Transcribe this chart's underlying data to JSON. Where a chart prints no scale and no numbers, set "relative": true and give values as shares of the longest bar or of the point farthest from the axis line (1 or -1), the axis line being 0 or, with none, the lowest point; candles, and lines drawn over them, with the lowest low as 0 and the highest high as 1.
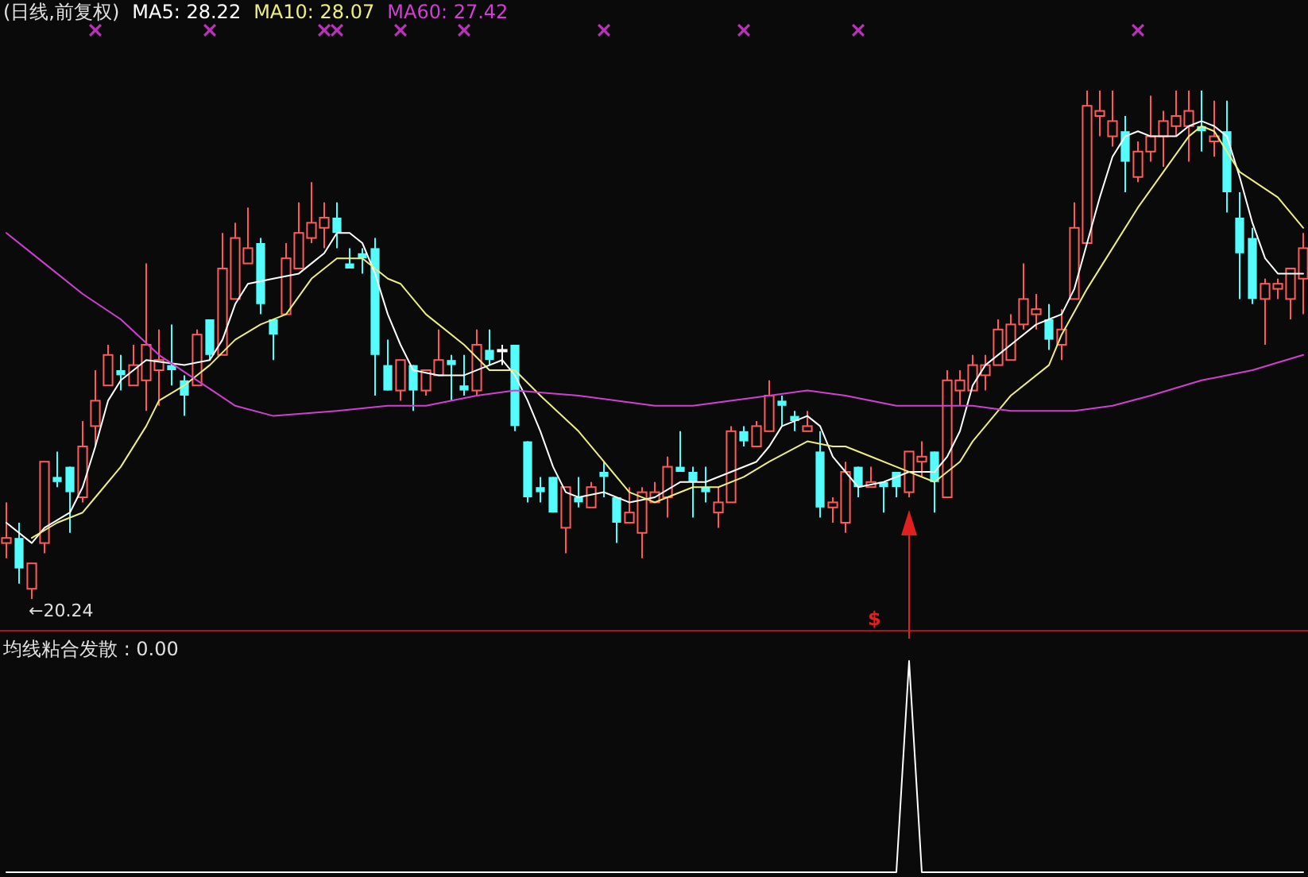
{
  "chart_data": [
    {
      "type": "candlestick",
      "title": "(日线,前复权)",
      "relative": true,
      "legend": "top left",
      "categories": [
        null,
        null,
        null,
        null,
        null,
        null,
        null,
        null,
        null,
        null,
        null,
        null,
        null,
        null,
        null,
        null,
        null,
        null,
        null,
        null,
        null,
        null,
        null,
        null,
        null,
        null,
        null,
        null,
        null,
        null,
        null,
        null,
        null,
        null,
        null,
        null,
        null,
        null,
        null,
        null,
        null,
        null,
        null,
        null,
        null,
        null,
        null,
        null,
        null,
        null,
        null,
        null,
        null,
        null,
        null,
        null,
        null,
        null,
        null,
        null,
        null,
        null,
        null,
        null,
        null,
        null,
        null,
        null,
        null,
        null,
        null,
        null,
        null,
        null,
        null,
        null,
        null,
        null,
        null,
        null,
        null,
        null,
        null,
        null,
        null,
        null,
        null,
        null,
        null,
        null,
        null,
        null,
        null,
        null,
        null,
        null,
        null,
        null,
        null,
        null,
        null,
        null,
        null
      ],
      "ohlc": [
        [
          0.11,
          0.19,
          0.08,
          0.12
        ],
        [
          0.12,
          0.15,
          0.03,
          0.06
        ],
        [
          0.02,
          0.07,
          0,
          0.07
        ],
        [
          0.11,
          0.27,
          0.09,
          0.27
        ],
        [
          0.24,
          0.29,
          0.22,
          0.23
        ],
        [
          0.26,
          0.26,
          0.13,
          0.21
        ],
        [
          0.2,
          0.35,
          0.19,
          0.3
        ],
        [
          0.34,
          0.45,
          0.3,
          0.39
        ],
        [
          0.42,
          0.5,
          0.42,
          0.48
        ],
        [
          0.45,
          0.48,
          0.41,
          0.44
        ],
        [
          0.42,
          0.5,
          0.42,
          0.46
        ],
        [
          0.43,
          0.66,
          0.37,
          0.5
        ],
        [
          0.45,
          0.53,
          0.38,
          0.47
        ],
        [
          0.46,
          0.54,
          0.42,
          0.45
        ],
        [
          0.43,
          0.44,
          0.36,
          0.4
        ],
        [
          0.42,
          0.53,
          0.42,
          0.52
        ],
        [
          0.55,
          0.55,
          0.47,
          0.48
        ],
        [
          0.48,
          0.72,
          0.48,
          0.65
        ],
        [
          0.59,
          0.74,
          0.59,
          0.71
        ],
        [
          0.66,
          0.77,
          0.66,
          0.69
        ],
        [
          0.7,
          0.71,
          0.56,
          0.58
        ],
        [
          0.55,
          0.55,
          0.47,
          0.52
        ],
        [
          0.56,
          0.7,
          0.56,
          0.67
        ],
        [
          0.65,
          0.78,
          0.65,
          0.72
        ],
        [
          0.71,
          0.82,
          0.7,
          0.74
        ],
        [
          0.73,
          0.78,
          0.69,
          0.75
        ],
        [
          0.75,
          0.78,
          0.69,
          0.72
        ],
        [
          0.66,
          0.69,
          0.65,
          0.65
        ],
        [
          0.68,
          0.69,
          0.64,
          0.67
        ],
        [
          0.69,
          0.71,
          0.4,
          0.48
        ],
        [
          0.46,
          0.51,
          0.41,
          0.41
        ],
        [
          0.41,
          0.47,
          0.39,
          0.47
        ],
        [
          0.46,
          0.46,
          0.37,
          0.41
        ],
        [
          0.41,
          0.45,
          0.4,
          0.45
        ],
        [
          0.44,
          0.53,
          0.44,
          0.47
        ],
        [
          0.47,
          0.48,
          0.39,
          0.46
        ],
        [
          0.42,
          0.48,
          0.4,
          0.41
        ],
        [
          0.41,
          0.53,
          0.4,
          0.5
        ],
        [
          0.49,
          0.53,
          0.46,
          0.47
        ],
        [
          0.49,
          0.5,
          0.46,
          0.49
        ],
        [
          0.5,
          0.5,
          0.33,
          0.34
        ],
        [
          0.31,
          0.31,
          0.19,
          0.2
        ],
        [
          0.22,
          0.24,
          0.19,
          0.21
        ],
        [
          0.24,
          0.24,
          0.17,
          0.17
        ],
        [
          0.14,
          0.22,
          0.09,
          0.22
        ],
        [
          0.2,
          0.24,
          0.18,
          0.19
        ],
        [
          0.18,
          0.23,
          0.18,
          0.22
        ],
        [
          0.25,
          0.27,
          0.2,
          0.24
        ],
        [
          0.2,
          0.2,
          0.11,
          0.15
        ],
        [
          0.15,
          0.22,
          0.15,
          0.17
        ],
        [
          0.13,
          0.22,
          0.08,
          0.21
        ],
        [
          0.19,
          0.23,
          0.19,
          0.21
        ],
        [
          0.2,
          0.28,
          0.16,
          0.26
        ],
        [
          0.26,
          0.33,
          0.25,
          0.25
        ],
        [
          0.25,
          0.26,
          0.16,
          0.23
        ],
        [
          0.22,
          0.26,
          0.19,
          0.21
        ],
        [
          0.17,
          0.22,
          0.14,
          0.19
        ],
        [
          0.19,
          0.34,
          0.19,
          0.33
        ],
        [
          0.33,
          0.34,
          0.3,
          0.31
        ],
        [
          0.3,
          0.35,
          0.3,
          0.34
        ],
        [
          0.33,
          0.43,
          0.33,
          0.4
        ],
        [
          0.39,
          0.4,
          0.34,
          0.38
        ],
        [
          0.36,
          0.37,
          0.33,
          0.35
        ],
        [
          0.33,
          0.37,
          0.33,
          0.34
        ],
        [
          0.29,
          0.33,
          0.16,
          0.18
        ],
        [
          0.18,
          0.2,
          0.15,
          0.19
        ],
        [
          0.15,
          0.27,
          0.13,
          0.25
        ],
        [
          0.26,
          0.26,
          0.2,
          0.22
        ],
        [
          0.22,
          0.26,
          0.22,
          0.23
        ],
        [
          0.23,
          0.23,
          0.17,
          0.22
        ],
        [
          0.25,
          0.25,
          0.2,
          0.22
        ],
        [
          0.21,
          0.29,
          0.2,
          0.29
        ],
        [
          0.27,
          0.31,
          0.24,
          0.28
        ],
        [
          0.29,
          0.29,
          0.17,
          0.23
        ],
        [
          0.2,
          0.45,
          0.2,
          0.43
        ],
        [
          0.41,
          0.45,
          0.38,
          0.43
        ],
        [
          0.41,
          0.48,
          0.41,
          0.46
        ],
        [
          0.44,
          0.48,
          0.41,
          0.46
        ],
        [
          0.46,
          0.55,
          0.46,
          0.53
        ],
        [
          0.47,
          0.56,
          0.47,
          0.54
        ],
        [
          0.54,
          0.66,
          0.53,
          0.59
        ],
        [
          0.56,
          0.6,
          0.53,
          0.57
        ],
        [
          0.55,
          0.58,
          0.49,
          0.51
        ],
        [
          0.5,
          0.57,
          0.47,
          0.53
        ],
        [
          0.59,
          0.78,
          0.59,
          0.73
        ],
        [
          0.7,
          1,
          0.7,
          0.97
        ],
        [
          0.95,
          1,
          0.91,
          0.96
        ],
        [
          0.91,
          1,
          0.89,
          0.94
        ],
        [
          0.92,
          0.95,
          0.8,
          0.86
        ],
        [
          0.83,
          0.9,
          0.82,
          0.88
        ],
        [
          0.88,
          0.99,
          0.86,
          0.91
        ],
        [
          0.91,
          0.96,
          0.85,
          0.94
        ],
        [
          0.93,
          1,
          0.91,
          0.95
        ],
        [
          0.93,
          1,
          0.86,
          0.96
        ],
        [
          0.93,
          1,
          0.88,
          0.92
        ],
        [
          0.9,
          0.98,
          0.87,
          0.91
        ],
        [
          0.92,
          0.98,
          0.76,
          0.8
        ],
        [
          0.75,
          0.8,
          0.59,
          0.68
        ],
        [
          0.71,
          0.73,
          0.58,
          0.59
        ],
        [
          0.59,
          0.63,
          0.5,
          0.62
        ],
        [
          0.61,
          0.63,
          0.59,
          0.62
        ],
        [
          0.59,
          0.65,
          0.55,
          0.65
        ],
        [
          0.63,
          0.72,
          0.56,
          0.69
        ]
      ],
      "series": [
        {
          "type": "line",
          "name": "MA5: 28.22",
          "color": "#ffffff",
          "values": [
            0.15,
            null,
            0.11,
            0.14,
            null,
            0.17,
            0.22,
            0.3,
            0.39,
            0.43,
            null,
            0.47,
            null,
            null,
            0.46,
            null,
            0.47,
            0.51,
            0.58,
            0.62,
            null,
            0.63,
            null,
            0.64,
            0.66,
            0.68,
            0.72,
            0.72,
            0.7,
            0.64,
            0.56,
            0.5,
            0.45,
            null,
            0.44,
            null,
            0.44,
            null,
            0.46,
            0.47,
            0.44,
            0.39,
            0.33,
            0.26,
            0.21,
            0.2,
            null,
            0.21,
            null,
            0.19,
            null,
            0.2,
            null,
            0.23,
            null,
            0.23,
            null,
            0.25,
            null,
            0.27,
            0.3,
            0.34,
            null,
            0.36,
            0.34,
            0.28,
            0.25,
            0.22,
            null,
            0.23,
            null,
            0.25,
            null,
            0.25,
            0.28,
            0.33,
            0.42,
            0.46,
            null,
            0.5,
            null,
            0.54,
            0.55,
            0.56,
            0.61,
            0.7,
            0.79,
            0.87,
            0.91,
            0.92,
            0.91,
            null,
            0.91,
            0.93,
            0.94,
            0.93,
            0.91,
            0.83,
            0.74,
            0.67,
            0.64,
            null,
            0.64
          ]
        },
        {
          "type": "line",
          "name": "MA10: 28.07",
          "color": "#eeee80",
          "values": [
            null,
            null,
            0.12,
            null,
            0.15,
            null,
            0.17,
            0.2,
            null,
            0.26,
            null,
            0.34,
            0.39,
            null,
            0.42,
            null,
            0.46,
            null,
            0.51,
            null,
            0.54,
            null,
            0.56,
            null,
            0.63,
            null,
            0.67,
            null,
            0.67,
            null,
            0.63,
            0.62,
            null,
            0.56,
            null,
            null,
            0.5,
            null,
            0.45,
            null,
            0.45,
            null,
            0.4,
            null,
            null,
            0.33,
            null,
            0.27,
            null,
            0.21,
            null,
            0.19,
            0.2,
            null,
            0.22,
            null,
            0.22,
            null,
            0.24,
            null,
            0.27,
            null,
            null,
            0.31,
            null,
            0.3,
            0.3,
            null,
            0.28,
            null,
            0.26,
            null,
            null,
            0.23,
            null,
            0.27,
            0.31,
            null,
            null,
            0.4,
            null,
            null,
            0.46,
            0.52,
            null,
            0.61,
            null,
            0.69,
            null,
            0.77,
            null,
            0.84,
            null,
            0.91,
            0.93,
            0.92,
            null,
            0.84,
            null,
            null,
            0.79,
            null,
            0.73
          ]
        },
        {
          "type": "line",
          "name": "MA60: 27.42",
          "color": "#d040d0",
          "values": [
            0.72,
            null,
            null,
            0.66,
            null,
            null,
            0.6,
            null,
            null,
            0.55,
            null,
            null,
            0.48,
            null,
            null,
            0.43,
            null,
            null,
            0.38,
            null,
            null,
            0.36,
            null,
            null,
            null,
            null,
            0.37,
            null,
            null,
            null,
            0.38,
            null,
            null,
            0.38,
            null,
            null,
            null,
            0.4,
            null,
            null,
            0.41,
            null,
            null,
            null,
            null,
            0.4,
            null,
            null,
            null,
            null,
            null,
            0.38,
            null,
            null,
            0.38,
            null,
            null,
            null,
            null,
            null,
            0.4,
            null,
            null,
            0.41,
            null,
            null,
            0.4,
            null,
            null,
            null,
            0.38,
            null,
            null,
            null,
            null,
            null,
            0.38,
            null,
            null,
            0.37,
            null,
            null,
            null,
            null,
            0.37,
            null,
            null,
            0.38,
            null,
            null,
            0.4,
            null,
            null,
            null,
            0.43,
            null,
            null,
            null,
            0.45,
            null,
            null,
            null,
            0.48
          ]
        }
      ],
      "annotations": [
        "←20.24",
        "$"
      ]
    },
    {
      "type": "line",
      "title": "均线粘合发散 : 0.00",
      "relative": true,
      "categories": [
        null,
        null,
        null,
        null,
        null,
        null,
        null,
        null,
        null,
        null,
        null,
        null,
        null,
        null,
        null,
        null,
        null,
        null,
        null,
        null,
        null,
        null,
        null,
        null,
        null,
        null,
        null,
        null,
        null,
        null,
        null,
        null,
        null,
        null,
        null,
        null,
        null,
        null,
        null,
        null,
        null,
        null,
        null,
        null,
        null,
        null,
        null,
        null,
        null,
        null,
        null,
        null,
        null,
        null,
        null,
        null,
        null,
        null,
        null,
        null,
        null,
        null,
        null,
        null,
        null,
        null,
        null,
        null,
        null,
        null,
        null,
        null,
        null,
        null,
        null,
        null,
        null,
        null,
        null,
        null,
        null,
        null,
        null,
        null,
        null,
        null,
        null,
        null,
        null,
        null,
        null,
        null,
        null,
        null,
        null,
        null,
        null,
        null,
        null,
        null,
        null,
        null,
        null
      ],
      "series": [
        {
          "color": "#ffffff",
          "values": [
            0,
            0,
            0,
            0,
            0,
            0,
            0,
            0,
            0,
            0,
            0,
            0,
            0,
            0,
            0,
            0,
            0,
            0,
            0,
            0,
            0,
            0,
            0,
            0,
            0,
            0,
            0,
            0,
            0,
            0,
            0,
            0,
            0,
            0,
            0,
            0,
            0,
            0,
            0,
            0,
            0,
            0,
            0,
            0,
            0,
            0,
            0,
            0,
            0,
            0,
            0,
            0,
            0,
            0,
            0,
            0,
            0,
            0,
            0,
            0,
            0,
            0,
            0,
            0,
            0,
            0,
            0,
            0,
            0,
            0,
            0,
            1,
            0,
            0,
            0,
            0,
            0,
            0,
            0,
            0,
            0,
            0,
            0,
            0,
            0,
            0,
            0,
            0,
            0,
            0,
            0,
            0,
            0,
            0,
            0,
            0,
            0,
            0,
            0,
            0,
            0,
            0,
            0
          ]
        }
      ]
    }
  ]
}
